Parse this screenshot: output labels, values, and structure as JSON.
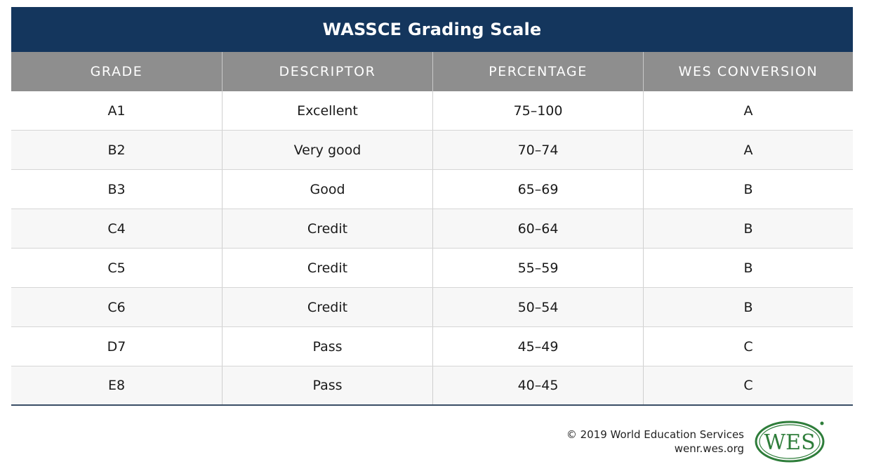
{
  "title": "WASSCE Grading Scale",
  "columns": [
    "GRADE",
    "DESCRIPTOR",
    "PERCENTAGE",
    "WES CONVERSION"
  ],
  "rows": [
    [
      "A1",
      "Excellent",
      "75–100",
      "A"
    ],
    [
      "B2",
      "Very good",
      "70–74",
      "A"
    ],
    [
      "B3",
      "Good",
      "65–69",
      "B"
    ],
    [
      "C4",
      "Credit",
      "60–64",
      "B"
    ],
    [
      "C5",
      "Credit",
      "55–59",
      "B"
    ],
    [
      "C6",
      "Credit",
      "50–54",
      "B"
    ],
    [
      "D7",
      "Pass",
      "45–49",
      "C"
    ],
    [
      "E8",
      "Pass",
      "40–45",
      "C"
    ]
  ],
  "footer": {
    "copyright": "© 2019 World Education Services",
    "url": "wenr.wes.org",
    "logo_text": "WES"
  },
  "colors": {
    "title_bg": "#14365d",
    "header_bg": "#8e8e8e",
    "logo_green": "#2e7d3a"
  }
}
